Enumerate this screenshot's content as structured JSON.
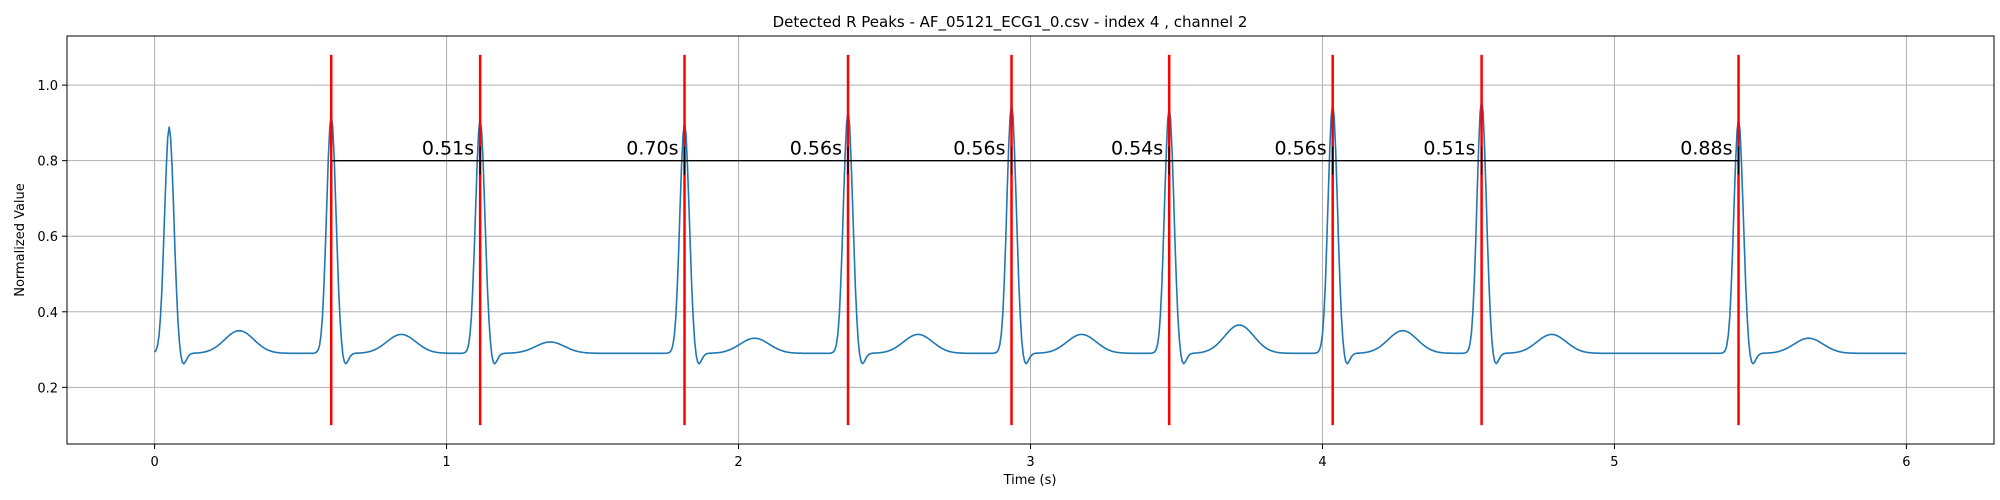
{
  "chart_data": {
    "type": "line",
    "title": "Detected R Peaks - AF_05121_ECG1_0.csv - index 4 , channel 2",
    "xlabel": "Time (s)",
    "ylabel": "Normalized Value",
    "xlim": [
      -0.3,
      6.3
    ],
    "ylim": [
      0.05,
      1.13
    ],
    "xticks": [
      0,
      1,
      2,
      3,
      4,
      5,
      6
    ],
    "xtick_labels": [
      "0",
      "1",
      "2",
      "3",
      "4",
      "5",
      "6"
    ],
    "yticks": [
      0.2,
      0.4,
      0.6,
      0.8,
      1.0
    ],
    "ytick_labels": [
      "0.2",
      "0.4",
      "0.6",
      "0.8",
      "1.0"
    ],
    "grid": true,
    "legend": "none",
    "signal_color": "#1f77b4",
    "peak_marker_color": "#ff0000",
    "interval_line_color": "#000000",
    "baseline": 0.29,
    "beats": [
      {
        "t": 0.05,
        "amp": 0.87
      },
      {
        "t": 0.605,
        "amp": 0.9
      },
      {
        "t": 1.115,
        "amp": 0.89
      },
      {
        "t": 1.815,
        "amp": 0.88
      },
      {
        "t": 2.375,
        "amp": 0.91
      },
      {
        "t": 2.935,
        "amp": 0.93
      },
      {
        "t": 3.475,
        "amp": 0.92
      },
      {
        "t": 4.035,
        "amp": 0.93
      },
      {
        "t": 4.545,
        "amp": 0.94
      },
      {
        "t": 5.425,
        "amp": 0.89
      }
    ],
    "r_peaks": [
      0.605,
      1.115,
      1.815,
      2.375,
      2.935,
      3.475,
      4.035,
      4.545,
      5.425
    ],
    "peak_line_range": [
      0.1,
      1.08
    ],
    "interval_line_y": 0.8,
    "rr_intervals": [
      {
        "value": 0.51,
        "label": "0.51s"
      },
      {
        "value": 0.7,
        "label": "0.70s"
      },
      {
        "value": 0.56,
        "label": "0.56s"
      },
      {
        "value": 0.56,
        "label": "0.56s"
      },
      {
        "value": 0.54,
        "label": "0.54s"
      },
      {
        "value": 0.56,
        "label": "0.56s"
      },
      {
        "value": 0.51,
        "label": "0.51s"
      },
      {
        "value": 0.88,
        "label": "0.88s"
      }
    ]
  }
}
